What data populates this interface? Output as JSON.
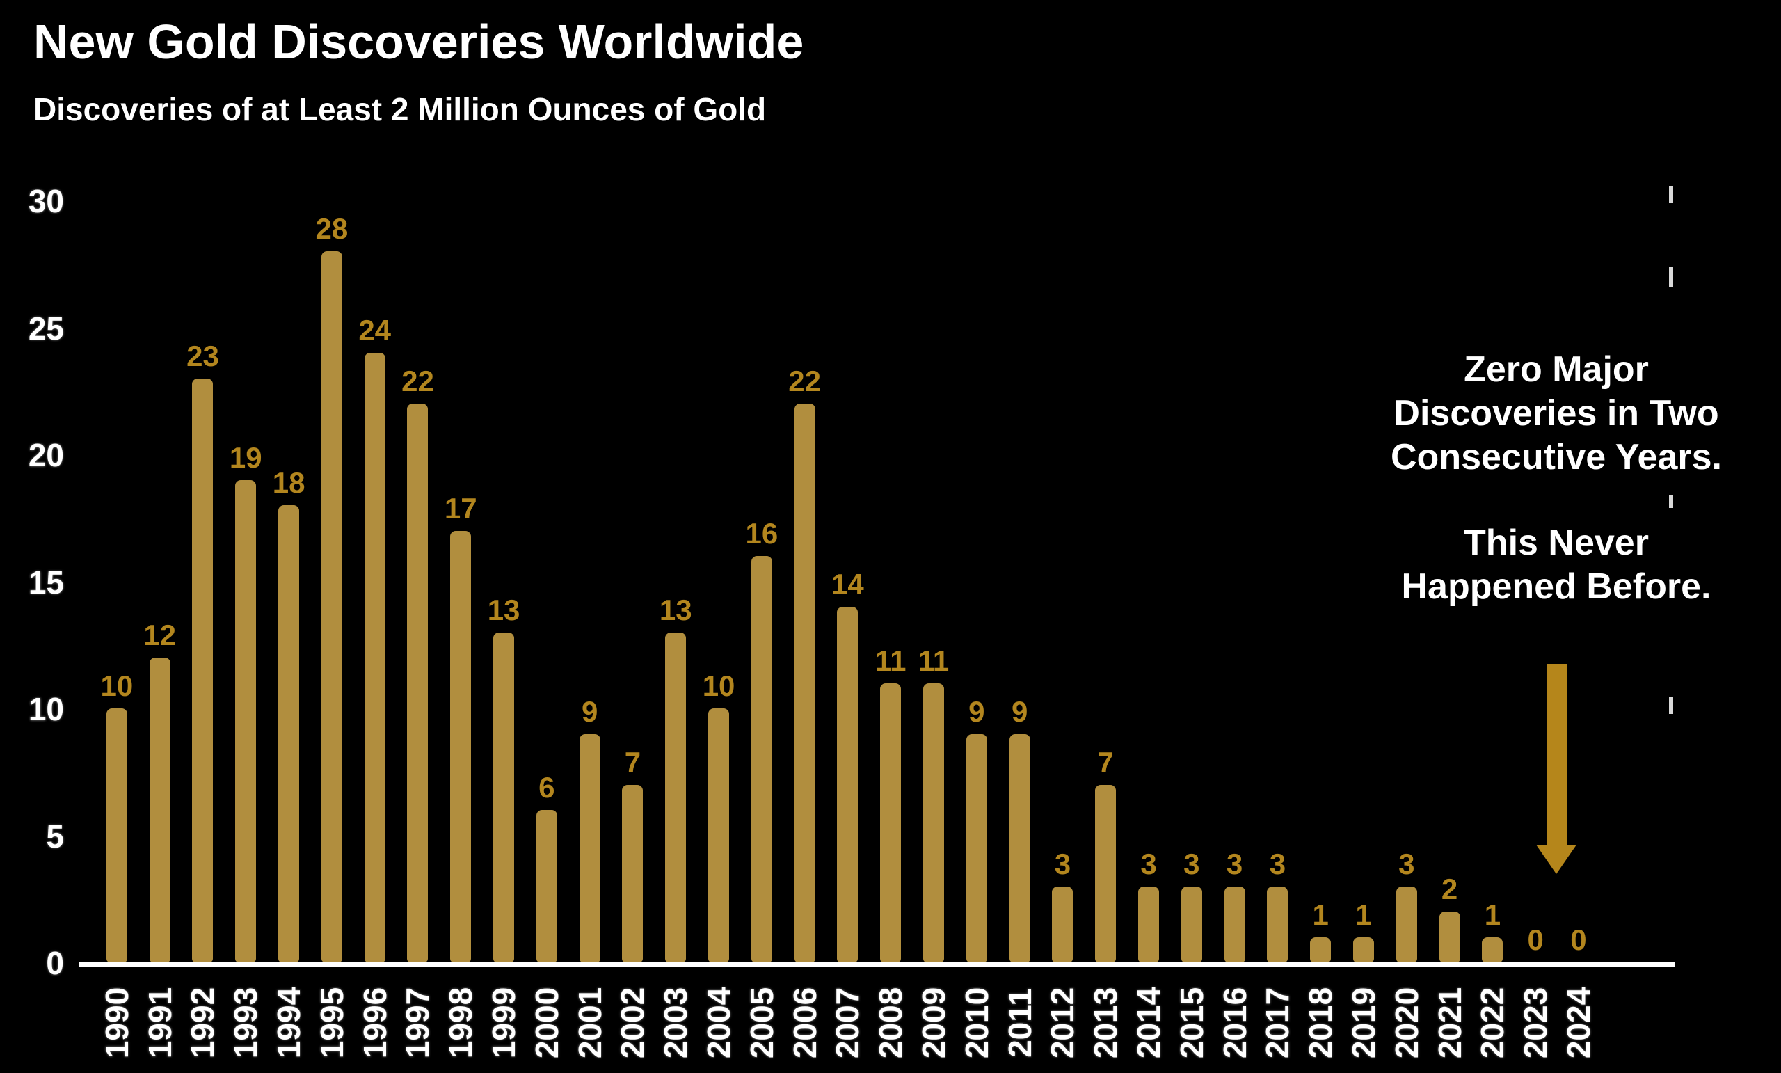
{
  "title": "New Gold Discoveries Worldwide",
  "subtitle": "Discoveries of at Least 2 Million Ounces of Gold",
  "annotation": {
    "paragraphs": [
      [
        "Zero Major",
        "Discoveries in Two",
        "Consecutive Years."
      ],
      [
        "This Never",
        "Happened Before."
      ]
    ]
  },
  "colors": {
    "background": "#000000",
    "text": "#FFFFFF",
    "bar": "#B18E3E",
    "value_label": "#B3861E",
    "arrow": "#B5861B",
    "axis_line": "#FFFFFF"
  },
  "chart_data": {
    "type": "bar",
    "title": "New Gold Discoveries Worldwide",
    "subtitle": "Discoveries of at Least 2 Million Ounces of Gold",
    "xlabel": "",
    "ylabel": "",
    "ylim": [
      0,
      30
    ],
    "yticks": [
      0,
      5,
      10,
      15,
      20,
      25,
      30
    ],
    "grid": false,
    "legend": false,
    "data_labels": true,
    "categories": [
      "1990",
      "1991",
      "1992",
      "1993",
      "1994",
      "1995",
      "1996",
      "1997",
      "1998",
      "1999",
      "2000",
      "2001",
      "2002",
      "2003",
      "2004",
      "2005",
      "2006",
      "2007",
      "2008",
      "2009",
      "2010",
      "2011",
      "2012",
      "2013",
      "2014",
      "2015",
      "2016",
      "2017",
      "2018",
      "2019",
      "2020",
      "2021",
      "2022",
      "2023",
      "2024"
    ],
    "values": [
      10,
      12,
      23,
      19,
      18,
      28,
      24,
      22,
      17,
      13,
      6,
      9,
      7,
      13,
      10,
      16,
      22,
      14,
      11,
      11,
      9,
      9,
      3,
      7,
      3,
      3,
      3,
      3,
      1,
      1,
      3,
      2,
      1,
      0,
      0
    ]
  }
}
